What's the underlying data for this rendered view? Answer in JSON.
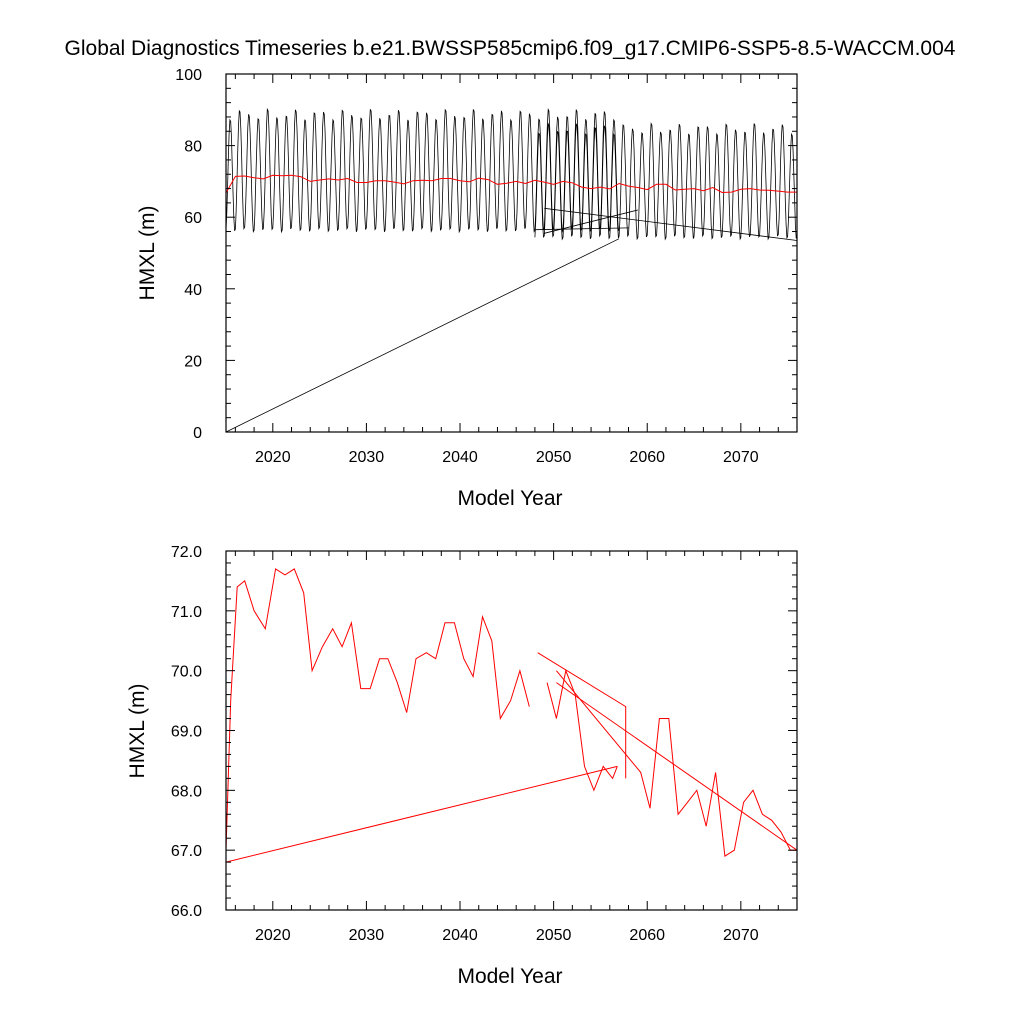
{
  "figure": {
    "title": "Global Diagnostics Timeseries b.e21.BWSSP585cmip6.f09_g17.CMIP6-SSP5-8.5-WACCM.004"
  },
  "chart_data": [
    {
      "type": "line",
      "xlabel": "Model Year",
      "ylabel": "HMXL (m)",
      "xlim": [
        2015,
        2076
      ],
      "ylim": [
        0,
        100
      ],
      "xticks": [
        2020,
        2030,
        2040,
        2050,
        2060,
        2070
      ],
      "ytick_labels": [
        "0",
        "20",
        "40",
        "60",
        "80",
        "100"
      ],
      "grid": false,
      "legend": "none",
      "series": [
        {
          "color": "#000000",
          "style": "monthly seasonal cycle",
          "segments": [
            {
              "x_start": 2015.0,
              "x_end": 2057.0,
              "min": 56,
              "max": 89
            },
            {
              "x_start": 2048.0,
              "x_end": 2076.0,
              "min": 54,
              "max": 85
            }
          ],
          "artifact_lines": [
            {
              "x": [
                2015.0,
                2057.0
              ],
              "y": [
                0,
                54
              ]
            },
            {
              "x": [
                2048.0,
                2058.0
              ],
              "y": [
                56.5,
                57
              ]
            },
            {
              "x": [
                2049.0,
                2076.0
              ],
              "y": [
                62.5,
                53.5
              ]
            },
            {
              "x": [
                2049.0,
                2059.0
              ],
              "y": [
                55.5,
                62
              ]
            }
          ]
        },
        {
          "color": "#ff0000",
          "style": "annual mean",
          "x": [
            2015.0,
            2016.0,
            2017.0,
            2018.0,
            2019.0,
            2020.0,
            2021.0,
            2022.0,
            2023.0,
            2024.0,
            2025.0,
            2026.0,
            2027.0,
            2028.0,
            2029.0,
            2030.0,
            2031.0,
            2032.0,
            2033.0,
            2034.0,
            2035.0,
            2036.0,
            2037.0,
            2038.0,
            2039.0,
            2040.0,
            2041.0,
            2042.0,
            2043.0,
            2044.0,
            2045.0,
            2046.0,
            2047.0,
            2048.0,
            2049.0,
            2050.0,
            2051.0,
            2052.0,
            2053.0,
            2054.0,
            2055.0,
            2056.0,
            2057.0,
            2058.0,
            2059.0,
            2060.0,
            2061.0,
            2062.0,
            2063.0,
            2064.0,
            2065.0,
            2066.0,
            2067.0,
            2068.0,
            2069.0,
            2070.0,
            2071.0,
            2072.0,
            2073.0,
            2074.0,
            2075.0,
            2076.0
          ],
          "y": [
            66.8,
            71.4,
            71.5,
            71.0,
            70.7,
            71.7,
            71.6,
            71.7,
            71.3,
            70.0,
            70.4,
            70.7,
            70.4,
            70.8,
            69.7,
            69.7,
            70.2,
            70.2,
            69.8,
            69.3,
            70.2,
            70.3,
            70.2,
            70.8,
            70.8,
            70.2,
            69.9,
            70.9,
            70.5,
            69.2,
            69.5,
            70.0,
            69.4,
            70.3,
            69.8,
            69.2,
            70.0,
            69.6,
            68.4,
            68.0,
            68.4,
            67.9,
            69.4,
            68.7,
            68.3,
            67.7,
            69.2,
            69.2,
            67.6,
            67.8,
            68.0,
            67.4,
            68.3,
            66.9,
            67.0,
            67.8,
            68.0,
            67.6,
            67.5,
            67.3,
            67.0,
            67.0
          ]
        }
      ]
    },
    {
      "type": "line",
      "xlabel": "Model Year",
      "ylabel": "HMXL (m)",
      "xlim": [
        2015,
        2076
      ],
      "ylim": [
        66,
        72
      ],
      "xticks": [
        2020,
        2030,
        2040,
        2050,
        2060,
        2070
      ],
      "ytick_labels": [
        "66.0",
        "67.0",
        "68.0",
        "69.0",
        "70.0",
        "71.0",
        "72.0"
      ],
      "grid": false,
      "legend": "none",
      "series": [
        {
          "color": "#ff0000",
          "x": [
            2015.0,
            2015.5,
            2016.2,
            2017.0,
            2018.0,
            2019.2,
            2020.3,
            2021.3,
            2022.3,
            2023.3,
            2024.2,
            2025.3,
            2026.4,
            2027.4,
            2028.4,
            2029.4,
            2030.4,
            2031.4,
            2032.3,
            2033.3,
            2034.3,
            2035.3,
            2036.4,
            2037.4,
            2038.4,
            2039.4,
            2040.4,
            2041.4,
            2042.4,
            2043.4,
            2044.3,
            2045.4,
            2046.4,
            2047.4
          ],
          "y": [
            67.0,
            69.5,
            71.4,
            71.5,
            71.0,
            70.7,
            71.7,
            71.6,
            71.7,
            71.3,
            70.0,
            70.4,
            70.7,
            70.4,
            70.8,
            69.7,
            69.7,
            70.2,
            70.2,
            69.8,
            69.3,
            70.2,
            70.3,
            70.2,
            70.8,
            70.8,
            70.2,
            69.9,
            70.9,
            70.5,
            69.2,
            69.5,
            70.0,
            69.4
          ],
          "artifact_segments": [
            {
              "x": [
                2015.0,
                2056.8
              ],
              "y": [
                66.8,
                68.4
              ]
            },
            {
              "x": [
                2048.3,
                2057.7,
                2057.7
              ],
              "y": [
                70.3,
                69.4,
                68.2
              ]
            },
            {
              "x": [
                2049.3,
                2050.3,
                2051.3,
                2052.3,
                2053.3,
                2054.3,
                2055.3,
                2056.3,
                2056.8
              ],
              "y": [
                69.8,
                69.2,
                70.0,
                69.6,
                68.4,
                68.0,
                68.4,
                68.2,
                68.4
              ]
            },
            {
              "x": [
                2050.3,
                2059.3,
                2060.3,
                2061.3,
                2062.3,
                2063.3,
                2064.3,
                2065.3,
                2066.3,
                2067.3,
                2068.3,
                2069.3,
                2070.3,
                2071.3,
                2072.3,
                2073.3,
                2074.3,
                2075.3,
                2076.0
              ],
              "y": [
                70.0,
                68.3,
                67.7,
                69.2,
                69.2,
                67.6,
                67.8,
                68.0,
                67.4,
                68.3,
                66.9,
                67.0,
                67.8,
                68.0,
                67.6,
                67.5,
                67.3,
                67.0,
                67.0
              ]
            },
            {
              "x": [
                2050.3,
                2076.0
              ],
              "y": [
                69.8,
                67.0
              ]
            }
          ]
        }
      ]
    }
  ]
}
